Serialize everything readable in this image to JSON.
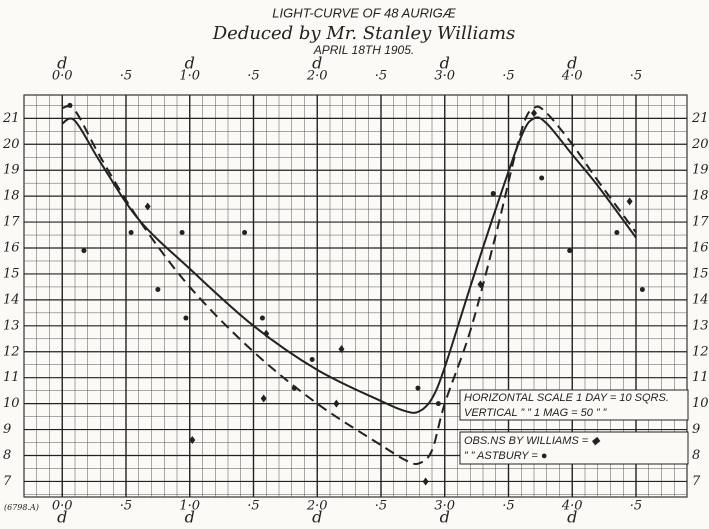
{
  "chart_data": {
    "type": "line",
    "title": "LIGHT-CURVE OF 48 AURIGÆ",
    "subtitle": "Deduced by Mr. Stanley Williams",
    "date": "APRIL 18TH 1905.",
    "plate": "(6798.A)",
    "day_label": "d",
    "annotations": [
      "HORIZONTAL SCALE 1 DAY = 10 SQRS.",
      "VERTICAL  ”  ”  1 MAG = 50  ”  ”",
      "OBS.NS BY WILLIAMS = ◆",
      "”  ”  ASTBURY = ●"
    ],
    "xlim": [
      -0.3,
      4.9
    ],
    "ylim": [
      6.4,
      21.9
    ],
    "xticks": [
      {
        "value": 0,
        "label": "0·0"
      },
      {
        "value": 0.5,
        "label": "·5"
      },
      {
        "value": 1,
        "label": "1·0"
      },
      {
        "value": 1.5,
        "label": "·5"
      },
      {
        "value": 2,
        "label": "2·0"
      },
      {
        "value": 2.5,
        "label": "·5"
      },
      {
        "value": 3,
        "label": "3·0"
      },
      {
        "value": 3.5,
        "label": "·5"
      },
      {
        "value": 4,
        "label": "4·0"
      },
      {
        "value": 4.5,
        "label": "·5"
      }
    ],
    "yticks": [
      7,
      8,
      9,
      10,
      11,
      12,
      13,
      14,
      15,
      16,
      17,
      18,
      19,
      20,
      21
    ],
    "grid": true,
    "series": [
      {
        "style": "solid",
        "color": "#222",
        "x": [
          0,
          0.1,
          0.3,
          0.6,
          1.0,
          1.5,
          2.0,
          2.5,
          2.7,
          2.8,
          2.9,
          3.0,
          3.2,
          3.4,
          3.6,
          3.7,
          3.8,
          4.0,
          4.2,
          4.5
        ],
        "values": [
          20.8,
          20.9,
          19.3,
          17.1,
          15.2,
          13.0,
          11.3,
          10.1,
          9.7,
          9.7,
          10.2,
          11.4,
          14.5,
          17.5,
          20.3,
          21.0,
          20.8,
          19.6,
          18.4,
          16.4
        ]
      },
      {
        "style": "dashed",
        "color": "#222",
        "x": [
          0,
          0.1,
          0.3,
          0.6,
          1.0,
          1.5,
          2.0,
          2.5,
          2.7,
          2.8,
          2.9,
          3.0,
          3.2,
          3.4,
          3.6,
          3.7,
          3.8,
          4.0,
          4.2,
          4.5
        ],
        "values": [
          21.4,
          21.3,
          19.5,
          17.1,
          14.5,
          12.0,
          10.0,
          8.4,
          7.8,
          7.7,
          8.2,
          10.0,
          12.8,
          16.5,
          20.5,
          21.4,
          21.2,
          20.0,
          18.6,
          16.6
        ]
      },
      {
        "style": "diamond",
        "color": "#222",
        "x": [
          0.67,
          1.6,
          1.58,
          2.15,
          2.19,
          3.28,
          3.7,
          4.45,
          1.02,
          2.85
        ],
        "values": [
          17.6,
          12.7,
          10.2,
          10.0,
          12.1,
          14.6,
          21.2,
          17.8,
          8.6,
          7.0
        ]
      },
      {
        "style": "dot",
        "color": "#222",
        "x": [
          0.06,
          0.17,
          0.54,
          0.75,
          0.94,
          0.97,
          1.43,
          1.57,
          1.96,
          1.82,
          2.79,
          2.95,
          3.38,
          3.76,
          3.98,
          4.35,
          4.55
        ],
        "values": [
          21.5,
          15.9,
          16.6,
          14.4,
          16.6,
          13.3,
          16.6,
          13.3,
          11.7,
          10.6,
          10.6,
          10.0,
          18.1,
          18.7,
          15.9,
          16.6,
          14.4
        ]
      }
    ]
  }
}
